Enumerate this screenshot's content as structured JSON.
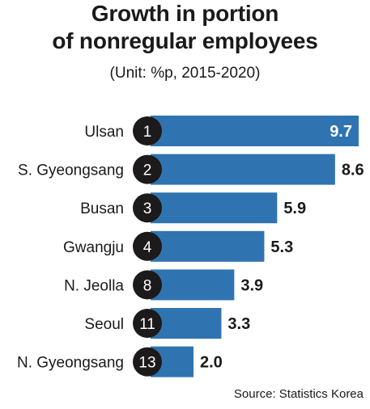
{
  "title_line1": "Growth in portion",
  "title_line2": "of nonregular employees",
  "subtitle": "(Unit: %p, 2015-2020)",
  "source": "Source: Statistics Korea",
  "colors": {
    "bar": "#2f74b0",
    "circle": "#1c1a1a",
    "text": "#1a1a1a",
    "inner_label": "#ffffff"
  },
  "chart_data": {
    "type": "bar",
    "orientation": "horizontal",
    "categories": [
      "Ulsan",
      "S. Gyeongsang",
      "Busan",
      "Gwangju",
      "N. Jeolla",
      "Seoul",
      "N. Gyeongsang"
    ],
    "ranks": [
      "1",
      "2",
      "3",
      "4",
      "8",
      "11",
      "13"
    ],
    "values": [
      9.7,
      8.6,
      5.9,
      5.3,
      3.9,
      3.3,
      2.0
    ],
    "value_labels": [
      "9.7",
      "8.6",
      "5.9",
      "5.3",
      "3.9",
      "3.3",
      "2.0"
    ],
    "xlim": [
      0,
      9.7
    ],
    "grid": false,
    "legend": "none"
  }
}
